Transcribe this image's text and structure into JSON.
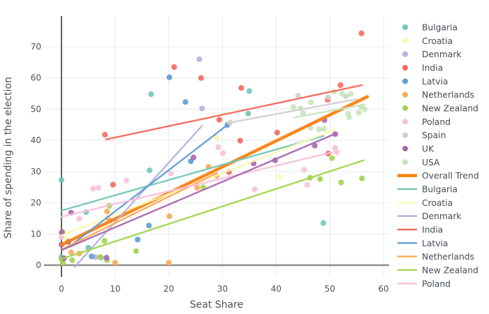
{
  "chart_data": {
    "type": "scatter",
    "title": "",
    "xlabel": "Seat Share",
    "ylabel": "Share of spending in the election",
    "xlim": [
      -3.3,
      61.1
    ],
    "ylim": [
      -3.8,
      80
    ],
    "xticks": [
      0,
      10,
      20,
      30,
      40,
      50,
      60
    ],
    "yticks": [
      0,
      10,
      20,
      30,
      40,
      50,
      60,
      70
    ],
    "grid": true,
    "legend_position": "right",
    "colors": {
      "grid": "#ebedf0",
      "zeroline_x": "#444444",
      "zeroline_y": "#8f8f8f",
      "tick_text": "#4a515c",
      "legend_text": "#444b54",
      "background": "#ffffff"
    },
    "series": [
      {
        "name": "Bulgaria",
        "color": "#72c7b8",
        "points": [
          [
            0,
            27.3
          ],
          [
            0,
            2.6
          ],
          [
            4.6,
            17
          ],
          [
            5,
            5.6
          ],
          [
            16.4,
            30.4
          ],
          [
            16.7,
            54.8
          ],
          [
            34.8,
            48.6
          ],
          [
            35,
            55.8
          ],
          [
            48.8,
            13.5
          ]
        ]
      },
      {
        "name": "Croatia",
        "color": "#f9f9b0",
        "points": [
          [
            0.5,
            10.8
          ],
          [
            0.9,
            8.6
          ],
          [
            29,
            41
          ],
          [
            40.6,
            28.3
          ]
        ]
      },
      {
        "name": "Denmark",
        "color": "#b6b1dd",
        "points": [
          [
            6.3,
            2.6
          ],
          [
            7.4,
            2.4
          ],
          [
            9.1,
            14.3
          ],
          [
            25.7,
            66
          ],
          [
            26.2,
            50.2
          ]
        ]
      },
      {
        "name": "India",
        "color": "#f4685c",
        "points": [
          [
            8.1,
            41.8
          ],
          [
            9.6,
            25.8
          ],
          [
            21,
            63.5
          ],
          [
            26,
            60
          ],
          [
            29.4,
            46.6
          ],
          [
            31.2,
            29.8
          ],
          [
            33.3,
            39.9
          ],
          [
            33.5,
            56.8
          ],
          [
            40.2,
            42.5
          ],
          [
            49.6,
            53
          ],
          [
            49.7,
            35.8
          ],
          [
            52,
            57.7
          ],
          [
            55.9,
            74.3
          ]
        ]
      },
      {
        "name": "Latvia",
        "color": "#5e9dd3",
        "points": [
          [
            5.6,
            2.8
          ],
          [
            14.2,
            8.2
          ],
          [
            16.3,
            12.7
          ],
          [
            20.1,
            60.2
          ],
          [
            23.1,
            52.3
          ],
          [
            24.1,
            33.3
          ],
          [
            30.9,
            44.9
          ]
        ]
      },
      {
        "name": "Netherlands",
        "color": "#fba954",
        "points": [
          [
            1.8,
            4.1
          ],
          [
            3.3,
            3.7
          ],
          [
            8.5,
            17.2
          ],
          [
            8.7,
            15
          ],
          [
            10,
            0.8
          ],
          [
            20,
            0.8
          ],
          [
            20.1,
            15.7
          ],
          [
            25.3,
            24.8
          ],
          [
            27.4,
            31.5
          ],
          [
            28.9,
            28.7
          ]
        ]
      },
      {
        "name": "New Zealand",
        "color": "#a2d54f",
        "points": [
          [
            0,
            10.4
          ],
          [
            0,
            1.9
          ],
          [
            0.3,
            0.7
          ],
          [
            2,
            1.6
          ],
          [
            7.2,
            2.6
          ],
          [
            8,
            7.8
          ],
          [
            8.5,
            1.6
          ],
          [
            8.9,
            19
          ],
          [
            13.9,
            4.5
          ],
          [
            26.4,
            25
          ],
          [
            46.3,
            28
          ],
          [
            48.2,
            27.6
          ],
          [
            50.4,
            34.3
          ],
          [
            52.1,
            26.5
          ],
          [
            56,
            27.8
          ]
        ]
      },
      {
        "name": "Poland",
        "color": "#f9c0dc",
        "points": [
          [
            0,
            8.9
          ],
          [
            3.3,
            14.9
          ],
          [
            5.9,
            24.5
          ],
          [
            6.9,
            24.8
          ],
          [
            12.1,
            27.1
          ],
          [
            20.4,
            29.4
          ],
          [
            29.2,
            37.8
          ],
          [
            30.1,
            35.9
          ],
          [
            36,
            24.3
          ],
          [
            45.2,
            30.6
          ],
          [
            45.8,
            25.7
          ],
          [
            51,
            37.6
          ],
          [
            51.3,
            36.2
          ]
        ]
      },
      {
        "name": "Spain",
        "color": "#d0d0d0",
        "points": [
          [
            31.4,
            45.7
          ],
          [
            44.1,
            54.3
          ],
          [
            49.7,
            53.8
          ],
          [
            53,
            54.1
          ]
        ]
      },
      {
        "name": "UK",
        "color": "#a767ad",
        "points": [
          [
            0,
            6.6
          ],
          [
            0.1,
            10.6
          ],
          [
            0.5,
            2.2
          ],
          [
            1.3,
            7.5
          ],
          [
            1.8,
            16.8
          ],
          [
            8.4,
            2.4
          ],
          [
            24.6,
            34.5
          ],
          [
            35.8,
            32.6
          ],
          [
            39.8,
            33.6
          ],
          [
            47.2,
            38.3
          ],
          [
            49,
            46.5
          ],
          [
            51,
            42
          ]
        ]
      },
      {
        "name": "USA",
        "color": "#c6e5bc",
        "points": [
          [
            43.2,
            50.7
          ],
          [
            44.5,
            50.3
          ],
          [
            45,
            48.8
          ],
          [
            46.4,
            44
          ],
          [
            46.5,
            52.2
          ],
          [
            48,
            43.5
          ],
          [
            48.9,
            43.7
          ],
          [
            50.8,
            55.6
          ],
          [
            52.3,
            54.9
          ],
          [
            53.4,
            48.5
          ],
          [
            53.6,
            47.4
          ],
          [
            53.9,
            54.9
          ],
          [
            55.4,
            48.9
          ],
          [
            55.8,
            50.8
          ],
          [
            56.5,
            50
          ]
        ]
      }
    ],
    "trend_lines": [
      {
        "name": "Overall Trend",
        "color": "#fd7f0e",
        "width": 4.5,
        "in_legend": true,
        "start": [
          0,
          6.5
        ],
        "end": [
          57,
          54
        ]
      },
      {
        "name": "Bulgaria",
        "color": "#72c7b8",
        "width": 2.4,
        "in_legend": true,
        "start": [
          0,
          17.5
        ],
        "end": [
          48.8,
          41.4
        ]
      },
      {
        "name": "Croatia",
        "color": "#f9f9b0",
        "width": 2.4,
        "in_legend": true,
        "start": [
          0,
          9.5
        ],
        "end": [
          51,
          43.5
        ]
      },
      {
        "name": "Denmark",
        "color": "#b6b1dd",
        "width": 2.4,
        "in_legend": true,
        "start": [
          2.5,
          -0.5
        ],
        "end": [
          26.2,
          44.7
        ]
      },
      {
        "name": "India",
        "color": "#f4685c",
        "width": 2.4,
        "in_legend": true,
        "start": [
          8.3,
          40.3
        ],
        "end": [
          56,
          57.7
        ]
      },
      {
        "name": "Latvia",
        "color": "#5e9dd3",
        "width": 2.4,
        "in_legend": true,
        "start": [
          1.5,
          6
        ],
        "end": [
          30.9,
          44.9
        ]
      },
      {
        "name": "Netherlands",
        "color": "#fba954",
        "width": 2.4,
        "in_legend": true,
        "start": [
          0,
          5
        ],
        "end": [
          28.9,
          29.5
        ]
      },
      {
        "name": "New Zealand",
        "color": "#a2d54f",
        "width": 2.4,
        "in_legend": true,
        "start": [
          0,
          2
        ],
        "end": [
          56.3,
          33.6
        ]
      },
      {
        "name": "Poland",
        "color": "#f9c0dc",
        "width": 2.4,
        "in_legend": true,
        "start": [
          0,
          15.5
        ],
        "end": [
          50.5,
          36.2
        ]
      },
      {
        "name": "Spain",
        "color": "#d0d0d0",
        "width": 2.4,
        "in_legend": false,
        "start": [
          31.4,
          45.7
        ],
        "end": [
          55,
          53.2
        ]
      },
      {
        "name": "UK",
        "color": "#a767ad",
        "width": 2.4,
        "in_legend": false,
        "start": [
          0,
          4.8
        ],
        "end": [
          51,
          42.1
        ]
      },
      {
        "name": "USA",
        "color": "#c6e5bc",
        "width": 2.4,
        "in_legend": false,
        "start": [
          43.3,
          47.3
        ],
        "end": [
          56.5,
          51.5
        ]
      }
    ]
  }
}
